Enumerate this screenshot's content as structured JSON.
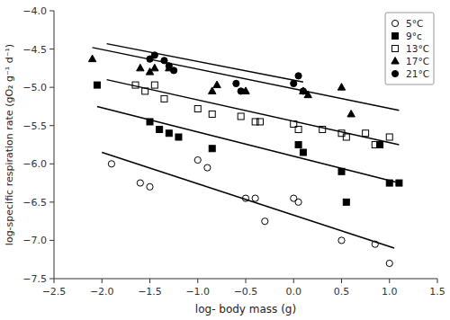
{
  "chart_data": {
    "type": "scatter",
    "x_label": "log- body mass (g)",
    "y_label": "log-specific respiration rate (gO₂ g⁻¹ d⁻¹)",
    "xlim": [
      -2.5,
      1.5
    ],
    "ylim": [
      -7.5,
      -4.0
    ],
    "xticks": [
      {
        "value": -2.5,
        "label": "−2.5"
      },
      {
        "value": -2.0,
        "label": "−2.0"
      },
      {
        "value": -1.5,
        "label": "−1.5"
      },
      {
        "value": -1.0,
        "label": "−1.0"
      },
      {
        "value": -0.5,
        "label": "−0.5"
      },
      {
        "value": 0.0,
        "label": "0.0"
      },
      {
        "value": 0.5,
        "label": "0.5"
      },
      {
        "value": 1.0,
        "label": "1.0"
      },
      {
        "value": 1.5,
        "label": "1.5"
      }
    ],
    "yticks": [
      {
        "value": -7.5,
        "label": "−7.5"
      },
      {
        "value": -7.0,
        "label": "−7.0"
      },
      {
        "value": -6.5,
        "label": "−6.5"
      },
      {
        "value": -6.0,
        "label": "−6.0"
      },
      {
        "value": -5.5,
        "label": "−5.5"
      },
      {
        "value": -5.0,
        "label": "−5.0"
      },
      {
        "value": -4.5,
        "label": "−4.5"
      },
      {
        "value": -4.0,
        "label": "−4.0"
      }
    ],
    "grid": false,
    "legend": "upper right",
    "series": [
      {
        "name": "5°C",
        "marker": "circle-open",
        "color": "black",
        "x": [
          -1.9,
          -1.6,
          -1.5,
          -1.0,
          -0.9,
          -0.5,
          -0.4,
          -0.3,
          0.0,
          0.05,
          0.5,
          0.85,
          1.0
        ],
        "values": [
          -6.0,
          -6.25,
          -6.3,
          -5.95,
          -6.05,
          -6.45,
          -6.45,
          -6.75,
          -6.45,
          -6.5,
          -7.0,
          -7.05,
          -7.3
        ],
        "reg_x": [
          -2.0,
          1.05
        ],
        "reg_y": [
          -5.85,
          -7.1
        ]
      },
      {
        "name": "9°c",
        "marker": "square",
        "color": "black",
        "x": [
          -2.05,
          -1.5,
          -1.4,
          -1.3,
          -1.2,
          -0.85,
          0.05,
          0.1,
          0.5,
          0.55,
          0.9,
          1.0,
          1.1
        ],
        "values": [
          -4.97,
          -5.45,
          -5.55,
          -5.6,
          -5.65,
          -5.8,
          -5.75,
          -5.85,
          -6.1,
          -6.5,
          -5.75,
          -6.25,
          -6.25
        ],
        "reg_x": [
          -2.05,
          1.1
        ],
        "reg_y": [
          -5.25,
          -6.25
        ]
      },
      {
        "name": "13°C",
        "marker": "square-open",
        "color": "black",
        "x": [
          -1.65,
          -1.55,
          -1.45,
          -1.35,
          -1.0,
          -0.85,
          -0.55,
          -0.4,
          -0.35,
          0.0,
          0.05,
          0.3,
          0.5,
          0.55,
          0.75,
          0.85,
          1.0
        ],
        "values": [
          -4.97,
          -5.05,
          -4.97,
          -5.15,
          -5.28,
          -5.35,
          -5.38,
          -5.45,
          -5.45,
          -5.48,
          -5.55,
          -5.55,
          -5.6,
          -5.65,
          -5.6,
          -5.75,
          -5.65
        ],
        "reg_x": [
          -1.95,
          1.1
        ],
        "reg_y": [
          -4.9,
          -5.75
        ]
      },
      {
        "name": "17°C",
        "marker": "triangle",
        "color": "black",
        "x": [
          -2.1,
          -1.6,
          -1.5,
          -1.45,
          -1.3,
          -0.85,
          -0.8,
          -0.5,
          0.1,
          0.15,
          0.5,
          0.6
        ],
        "values": [
          -4.63,
          -4.75,
          -4.8,
          -4.75,
          -4.75,
          -5.05,
          -4.97,
          -5.05,
          -5.05,
          -5.1,
          -5.0,
          -5.35
        ],
        "reg_x": [
          -2.1,
          1.1
        ],
        "reg_y": [
          -4.48,
          -5.3
        ]
      },
      {
        "name": "21°C",
        "marker": "circle",
        "color": "black",
        "x": [
          -1.5,
          -1.45,
          -1.35,
          -1.3,
          -1.25,
          -0.6,
          -0.55,
          0.0,
          0.05,
          0.1
        ],
        "values": [
          -4.63,
          -4.58,
          -4.65,
          -4.72,
          -4.78,
          -4.95,
          -5.05,
          -4.95,
          -4.85,
          -5.05
        ],
        "reg_x": [
          -1.95,
          0.1
        ],
        "reg_y": [
          -4.43,
          -4.93
        ]
      }
    ]
  }
}
